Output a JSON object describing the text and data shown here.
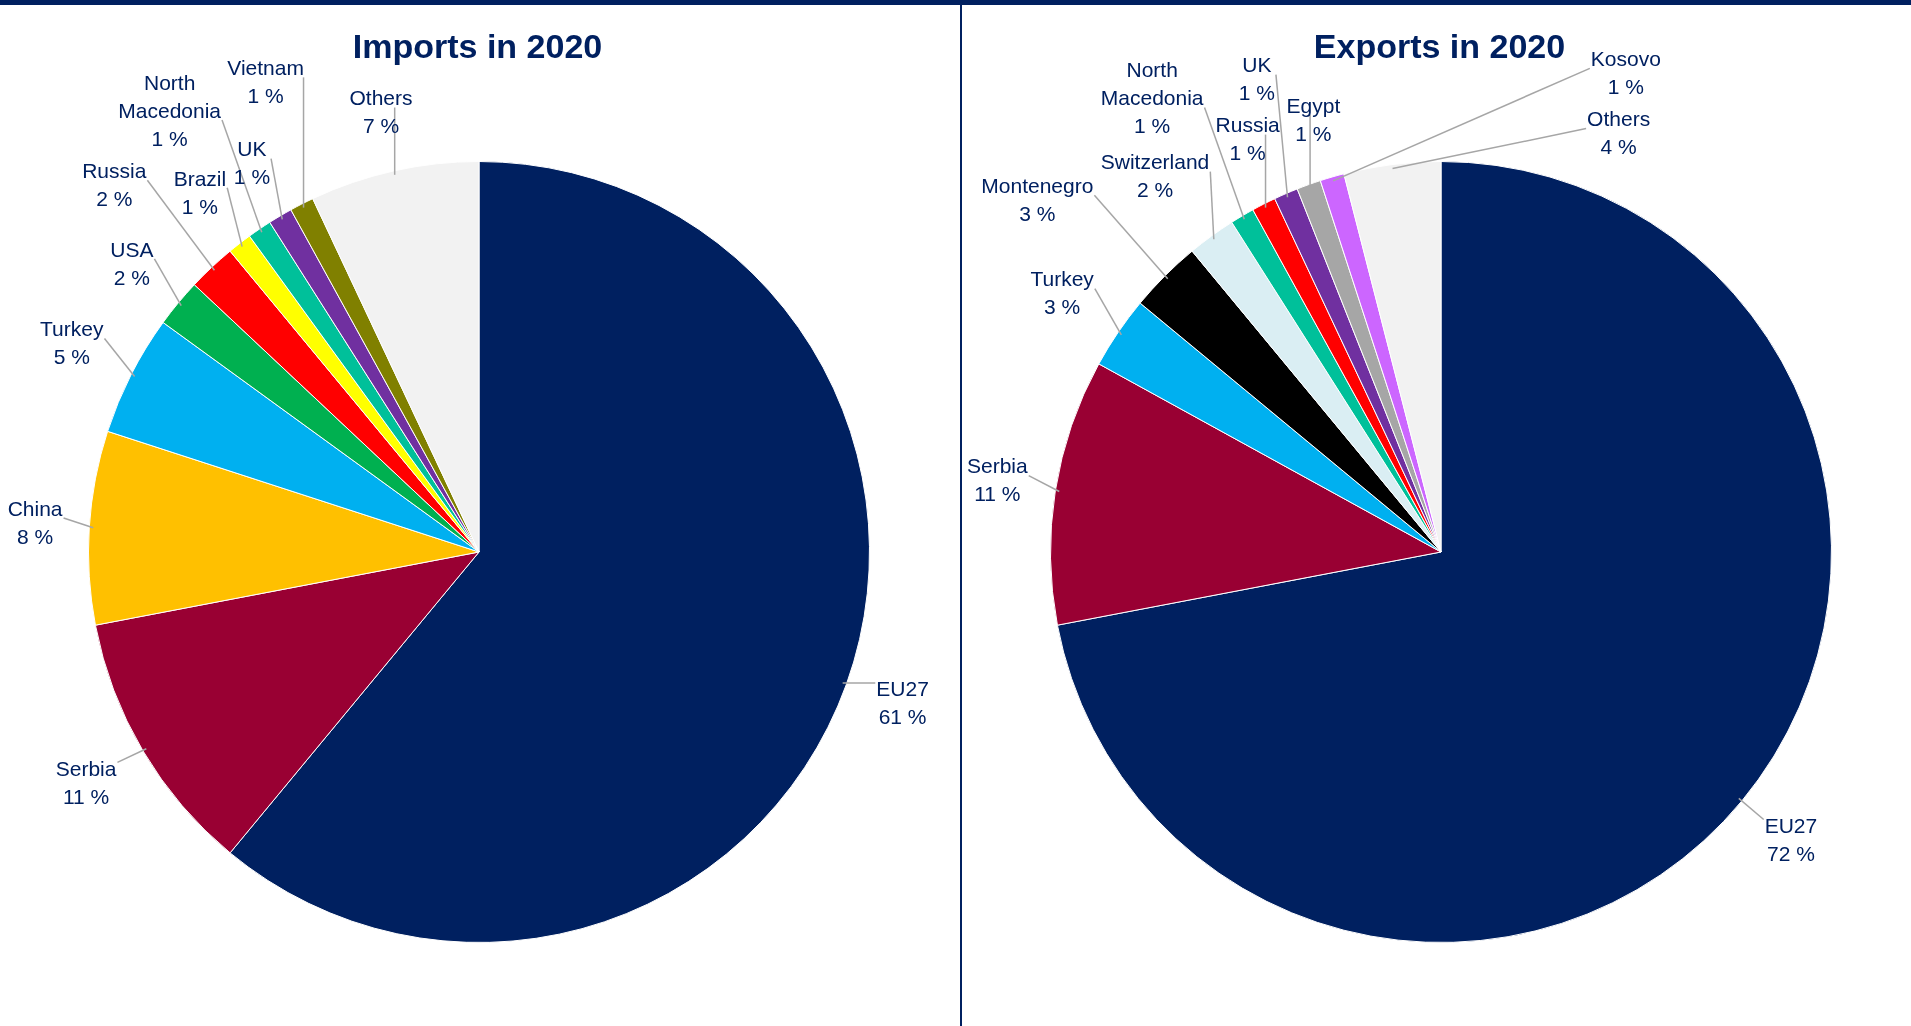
{
  "chart_data": [
    {
      "type": "pie",
      "title": "Imports in 2020",
      "categories": [
        "EU27",
        "Serbia",
        "China",
        "Turkey",
        "USA",
        "Russia",
        "Brazil",
        "North Macedonia",
        "UK",
        "Vietnam",
        "Others"
      ],
      "values": [
        61,
        11,
        8,
        5,
        2,
        2,
        1,
        1,
        1,
        1,
        7
      ],
      "value_labels": [
        "61 %",
        "11 %",
        "8 %",
        "5 %",
        "2 %",
        "2 %",
        "1 %",
        "1 %",
        "1 %",
        "1 %",
        "7 %"
      ],
      "colors": [
        "#002060",
        "#990033",
        "#ffc000",
        "#00b0f0",
        "#00b050",
        "#ff0000",
        "#ffff00",
        "#00c09a",
        "#7030a0",
        "#808000",
        "#f2f2f2"
      ]
    },
    {
      "type": "pie",
      "title": "Exports in 2020",
      "categories": [
        "EU27",
        "Serbia",
        "Turkey",
        "Montenegro",
        "Switzerland",
        "North Macedonia",
        "Russia",
        "UK",
        "Egypt",
        "Kosovo",
        "Others"
      ],
      "values": [
        72,
        11,
        3,
        3,
        2,
        1,
        1,
        1,
        1,
        1,
        4
      ],
      "value_labels": [
        "72 %",
        "11 %",
        "3 %",
        "3 %",
        "2 %",
        "1 %",
        "1 %",
        "1 %",
        "1 %",
        "1 %",
        "4 %"
      ],
      "colors": [
        "#002060",
        "#990033",
        "#00b0f0",
        "#000000",
        "#daeef3",
        "#00c09a",
        "#ff0000",
        "#7030a0",
        "#a6a6a6",
        "#cc66ff",
        "#f2f2f2"
      ]
    }
  ]
}
